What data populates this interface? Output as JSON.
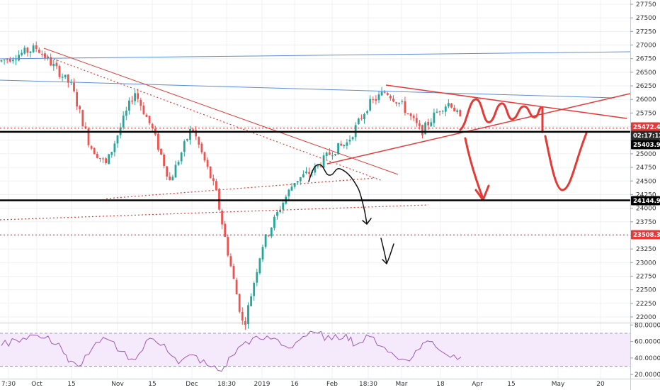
{
  "chart_data": [
    {
      "type": "candlestick",
      "title": "",
      "xlabel": "",
      "ylabel": "",
      "ylim": [
        21950,
        27900
      ],
      "y_ticks": [
        22000,
        22250,
        22500,
        22750,
        23000,
        23250,
        23500,
        23750,
        24000,
        24250,
        24500,
        24750,
        25000,
        25250,
        25500,
        25750,
        26000,
        26250,
        26500,
        26750,
        27000,
        27250,
        27500,
        27750
      ],
      "x_ticks": [
        "7:30",
        "Oct",
        "15",
        "Nov",
        "15",
        "Dec",
        "18:30",
        "2019",
        "16",
        "Feb",
        "18:30",
        "Mar",
        "18",
        "Apr",
        "15",
        "May",
        "20"
      ],
      "grid": true,
      "price_tags": [
        {
          "label": "25472.47",
          "value": 25472.47,
          "color": "#e53935"
        },
        {
          "label": "02:17:12",
          "value": 25400,
          "color": "#2b2b2b"
        },
        {
          "label": "25403.91",
          "value": 25403.91,
          "color": "#000000"
        },
        {
          "label": "24144.96",
          "value": 24144.96,
          "color": "#000000"
        },
        {
          "label": "23508.39",
          "value": 23508.39,
          "color": "#e53935"
        }
      ],
      "horizontal_levels": [
        {
          "value": 25403.91,
          "style": "solid-black"
        },
        {
          "value": 24144.96,
          "style": "solid-black"
        },
        {
          "value": 23508.39,
          "style": "dotted-red"
        },
        {
          "value": 25472.47,
          "style": "dotted-red"
        }
      ],
      "anchors": [
        [
          "7:30",
          26700
        ],
        [
          "Oct",
          26950
        ],
        [
          "15",
          26250
        ],
        [
          "Oct 22",
          25150
        ],
        [
          "Oct 29",
          24800
        ],
        [
          "Nov",
          25350
        ],
        [
          "Nov 8",
          26150
        ],
        [
          "15",
          25450
        ],
        [
          "Nov 23",
          24500
        ],
        [
          "Dec",
          25500
        ],
        [
          "Dec 7",
          24900
        ],
        [
          "Dec 14",
          24300
        ],
        [
          "18:30",
          23300
        ],
        [
          "Dec 24",
          21800
        ],
        [
          "2019",
          23300
        ],
        [
          "Jan 10",
          24000
        ],
        [
          "16",
          24500
        ],
        [
          "Jan 24",
          24700
        ],
        [
          "Feb",
          25050
        ],
        [
          "Feb 8",
          25200
        ],
        [
          "18:30",
          25900
        ],
        [
          "Feb 25",
          26150
        ],
        [
          "Mar",
          25900
        ],
        [
          "Mar 8",
          25400
        ],
        [
          "18",
          25850
        ],
        [
          "Mar 22",
          25950
        ],
        [
          "Mar 26",
          25600
        ]
      ],
      "colors": {
        "up": "#26a69a",
        "down": "#ef5350",
        "trend_blue": "#5b8fd6",
        "trend_red": "#e53935",
        "rsi": "#a05ab8"
      }
    },
    {
      "type": "line",
      "title": "",
      "ylim": [
        15,
        82
      ],
      "y_ticks": [
        20.0,
        40.0,
        60.0,
        80.0
      ],
      "y_tick_labels": [
        "20.0000",
        "40.0000",
        "60.0000",
        "80.0000"
      ],
      "band": [
        30,
        70
      ],
      "anchors": [
        [
          0,
          55
        ],
        [
          3,
          62
        ],
        [
          6,
          68
        ],
        [
          9,
          64
        ],
        [
          12,
          58
        ],
        [
          14,
          35
        ],
        [
          16,
          30
        ],
        [
          19,
          52
        ],
        [
          22,
          63
        ],
        [
          25,
          48
        ],
        [
          28,
          38
        ],
        [
          31,
          64
        ],
        [
          34,
          57
        ],
        [
          37,
          33
        ],
        [
          40,
          44
        ],
        [
          43,
          31
        ],
        [
          46,
          24
        ],
        [
          48,
          42
        ],
        [
          51,
          60
        ],
        [
          54,
          63
        ],
        [
          57,
          64
        ],
        [
          60,
          52
        ],
        [
          63,
          66
        ],
        [
          66,
          70
        ],
        [
          69,
          62
        ],
        [
          72,
          69
        ],
        [
          74,
          56
        ],
        [
          77,
          66
        ],
        [
          80,
          53
        ],
        [
          83,
          38
        ],
        [
          86,
          42
        ],
        [
          88,
          58
        ],
        [
          90,
          60
        ],
        [
          93,
          44
        ],
        [
          96,
          41
        ]
      ],
      "x_extent": 110
    }
  ]
}
